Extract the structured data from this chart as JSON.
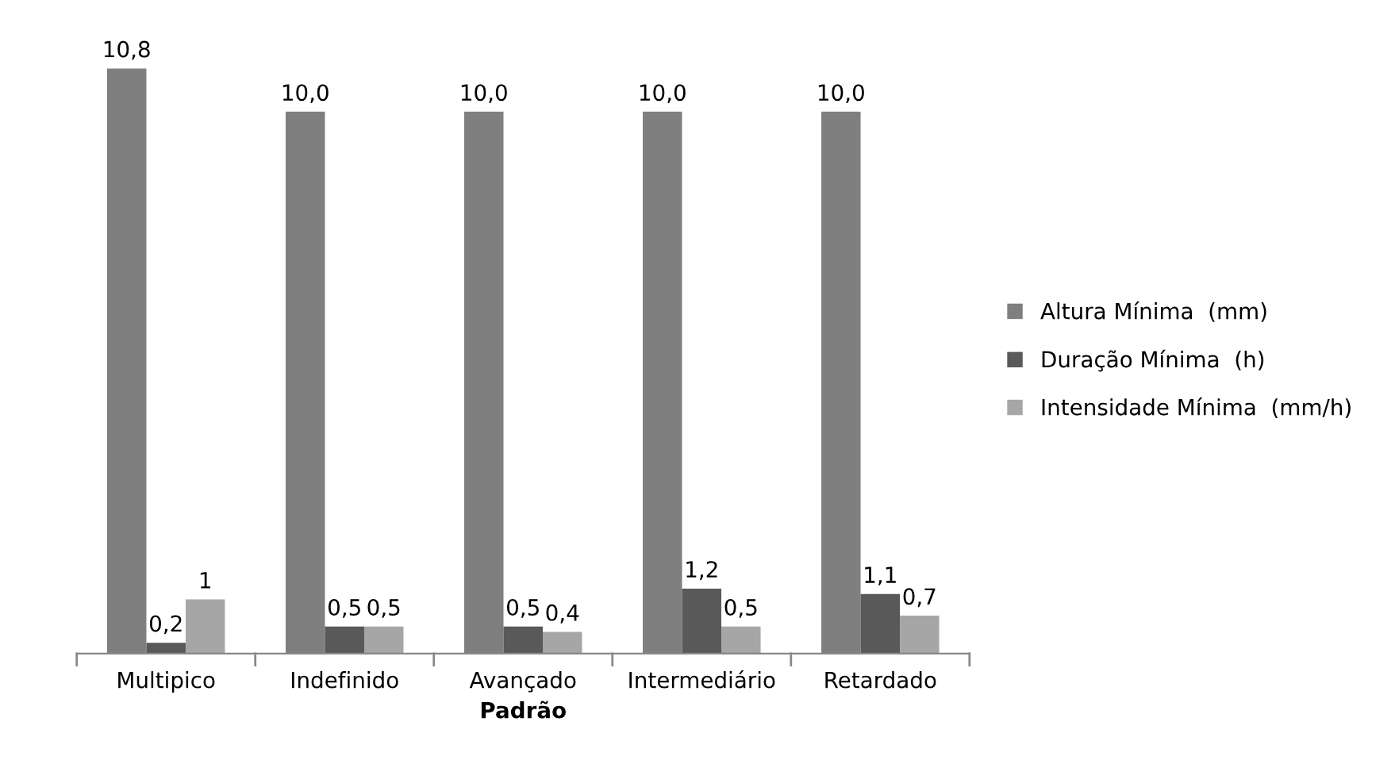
{
  "chart_data": {
    "type": "bar",
    "xlabel": "Padrão",
    "categories": [
      "Multipico",
      "Indefinido",
      "Avançado",
      "Intermediário",
      "Retardado"
    ],
    "series": [
      {
        "name": "Altura Mínima  (mm)",
        "color": "#7f7f7f",
        "values": [
          10.8,
          10.0,
          10.0,
          10.0,
          10.0
        ],
        "value_labels": [
          "10,8",
          "10,0",
          "10,0",
          "10,0",
          "10,0"
        ]
      },
      {
        "name": "Duração Mínima  (h)",
        "color": "#595959",
        "values": [
          0.2,
          0.5,
          0.5,
          1.2,
          1.1
        ],
        "value_labels": [
          "0,2",
          "0,5",
          "0,5",
          "1,2",
          "1,1"
        ]
      },
      {
        "name": "Intensidade Mínima  (mm/h)",
        "color": "#a6a6a6",
        "values": [
          1,
          0.5,
          0.4,
          0.5,
          0.7
        ],
        "value_labels": [
          "1",
          "0,5",
          "0,4",
          "0,5",
          "0,7"
        ]
      }
    ],
    "ylim": [
      0,
      10.8
    ],
    "legend": "right",
    "grid": false
  }
}
